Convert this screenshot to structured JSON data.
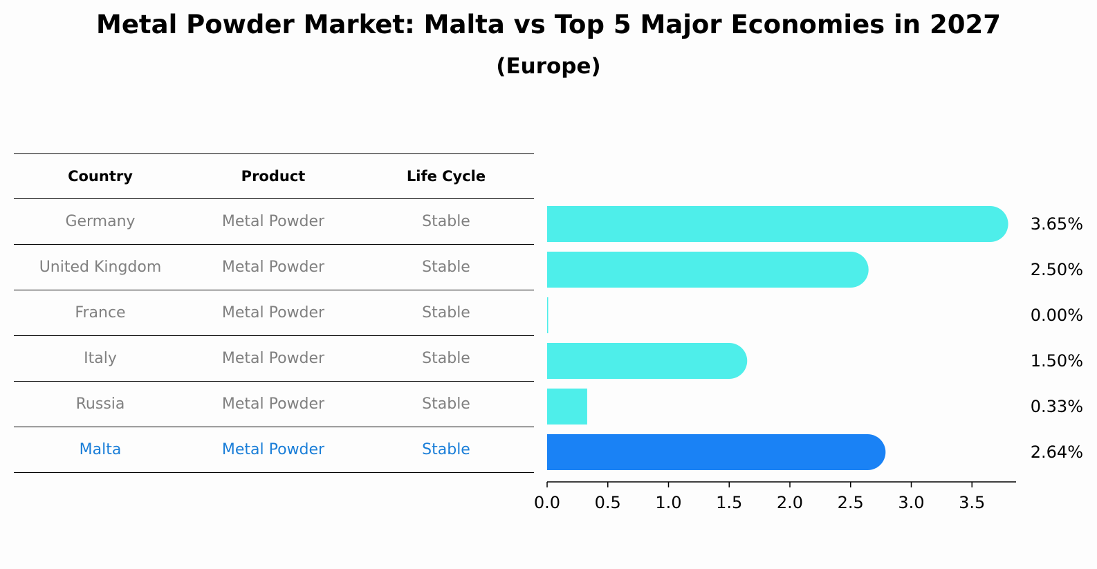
{
  "title": "Metal Powder Market: Malta vs Top 5 Major Economies in 2027",
  "subtitle": "(Europe)",
  "table": {
    "headers": [
      "Country",
      "Product",
      "Life Cycle"
    ],
    "rows": [
      [
        "Germany",
        "Metal Powder",
        "Stable"
      ],
      [
        "United Kingdom",
        "Metal Powder",
        "Stable"
      ],
      [
        "France",
        "Metal Powder",
        "Stable"
      ],
      [
        "Italy",
        "Metal Powder",
        "Stable"
      ],
      [
        "Russia",
        "Metal Powder",
        "Stable"
      ],
      [
        "Malta",
        "Metal Powder",
        "Stable"
      ]
    ]
  },
  "colors": {
    "bar": "#4eeeea",
    "highlight": "#1a82f5",
    "highlight_text": "#1a7ed8",
    "muted_text": "#808080"
  },
  "chart_data": {
    "type": "bar",
    "orientation": "horizontal",
    "categories": [
      "Germany",
      "United Kingdom",
      "France",
      "Italy",
      "Russia",
      "Malta"
    ],
    "values": [
      3.65,
      2.5,
      0.0,
      1.5,
      0.33,
      2.64
    ],
    "value_labels": [
      "3.65%",
      "2.50%",
      "0.00%",
      "1.50%",
      "0.33%",
      "2.64%"
    ],
    "highlight": "Malta",
    "xlim": [
      0,
      3.85
    ],
    "xticks": [
      "0.0",
      "0.5",
      "1.0",
      "1.5",
      "2.0",
      "2.5",
      "3.0",
      "3.5"
    ],
    "grid": false
  }
}
